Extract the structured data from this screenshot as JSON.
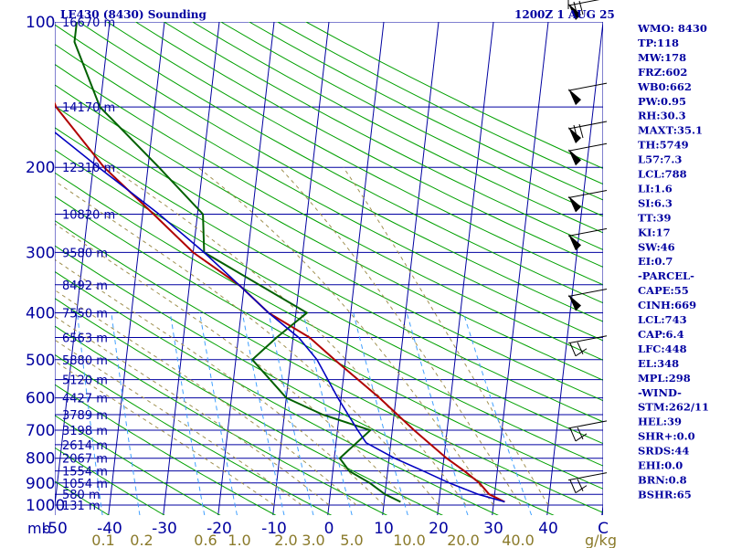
{
  "header": {
    "station": "LE430 (8430) Sounding",
    "time": "1200Z  1 AUG 25"
  },
  "axis_labels": {
    "pressure_unit": "mb",
    "mixing_unit": "g/kg"
  },
  "indices": [
    "WMO: 8430",
    "TP:118",
    "MW:178",
    "FRZ:602",
    "WB0:662",
    "PW:0.95",
    "RH:30.3",
    "MAXT:35.1",
    "TH:5749",
    "L57:7.3",
    "LCL:788",
    "LI:1.6",
    "SI:6.3",
    "TT:39",
    "KI:17",
    "SW:46",
    "EI:0.7",
    "-PARCEL-",
    "CAPE:55",
    "CINH:669",
    "LCL:743",
    "CAP:6.4",
    "LFC:448",
    "EL:348",
    "MPL:298",
    "-WIND-",
    "STM:262/11",
    "HEL:39",
    "SHR+:0.0",
    "SRDS:44",
    "EHI:0.0",
    "BRN:0.8",
    "BSHR:65"
  ],
  "colors": {
    "axis_text": "#0000a0",
    "isobar": "#0000a0",
    "isotherm": "#0000a0",
    "dry_adiabat": "#00a000",
    "moist_adiabat": "#a09050",
    "mixing_ratio": "#40a0ff",
    "temperature": "#b00000",
    "dewpoint": "#006000",
    "parcel": "#0000c0",
    "wind_barb": "#000000"
  },
  "chart_data": {
    "type": "skew-t log-p sounding",
    "pressure_range_mb": [
      1000,
      100
    ],
    "pressure_ticks": [
      100,
      200,
      300,
      400,
      500,
      600,
      700,
      800,
      900,
      1000
    ],
    "temperature_ticks": [
      "-50",
      "-40",
      "-30",
      "-20",
      "-10",
      "0",
      "10",
      "20",
      "30",
      "40",
      "C"
    ],
    "mixing_ratio_labels": [
      "0.1",
      "0.2",
      "0.6",
      "1.0",
      "2.0",
      "3.0",
      "5.0",
      "10.0",
      "20.0",
      "40.0"
    ],
    "height_labels": [
      {
        "p": 100,
        "label": "16670 m"
      },
      {
        "p": 150,
        "label": "14170 m"
      },
      {
        "p": 200,
        "label": "12310 m"
      },
      {
        "p": 250,
        "label": "10820 m"
      },
      {
        "p": 300,
        "label": "9580 m"
      },
      {
        "p": 350,
        "label": "8492 m"
      },
      {
        "p": 400,
        "label": "7550 m"
      },
      {
        "p": 450,
        "label": "6563 m"
      },
      {
        "p": 500,
        "label": "5880 m"
      },
      {
        "p": 550,
        "label": "5120 m"
      },
      {
        "p": 600,
        "label": "4427 m"
      },
      {
        "p": 650,
        "label": "3789 m"
      },
      {
        "p": 700,
        "label": "3198 m"
      },
      {
        "p": 750,
        "label": "2614 m"
      },
      {
        "p": 800,
        "label": "2067 m"
      },
      {
        "p": 850,
        "label": "1554 m"
      },
      {
        "p": 900,
        "label": "1054 m"
      },
      {
        "p": 950,
        "label": "580 m"
      },
      {
        "p": 1000,
        "label": "131 m"
      }
    ],
    "series": [
      {
        "name": "temperature",
        "p": [
          985,
          950,
          900,
          850,
          800,
          700,
          600,
          500,
          450,
          400,
          350,
          300,
          250,
          200,
          150,
          110,
          100
        ],
        "t": [
          32,
          29,
          27,
          24,
          20.5,
          14,
          7,
          -2,
          -7,
          -15,
          -21,
          -30,
          -38,
          -48,
          -58,
          -64,
          -61
        ]
      },
      {
        "name": "dewpoint",
        "p": [
          985,
          950,
          900,
          850,
          800,
          700,
          650,
          600,
          500,
          450,
          400,
          300,
          250,
          200,
          150,
          110,
          100
        ],
        "t": [
          13,
          10,
          7,
          3,
          1,
          6,
          -3,
          -10,
          -17,
          -13,
          -8,
          -28,
          -29,
          -38,
          -50,
          -56,
          -56
        ]
      },
      {
        "name": "parcel",
        "p": [
          985,
          950,
          900,
          850,
          800,
          743,
          700,
          600,
          500,
          450,
          400,
          350,
          300,
          250,
          200,
          150,
          110
        ],
        "t": [
          32,
          27,
          21.5,
          16.5,
          11,
          5.5,
          3.7,
          -0.6,
          -5.2,
          -9,
          -15,
          -21,
          -28,
          -37,
          -49,
          -64,
          -78
        ]
      }
    ],
    "winds": [
      {
        "p": 100,
        "kind": "pennants"
      },
      {
        "p": 150,
        "kind": "pennant"
      },
      {
        "p": 180,
        "kind": "pennants"
      },
      {
        "p": 200,
        "kind": "pennant"
      },
      {
        "p": 250,
        "kind": "pennant"
      },
      {
        "p": 300,
        "kind": "pennant"
      },
      {
        "p": 400,
        "kind": "pennant"
      },
      {
        "p": 500,
        "kind": "barbs"
      },
      {
        "p": 750,
        "kind": "barbs"
      },
      {
        "p": 960,
        "kind": "barbs"
      }
    ]
  }
}
